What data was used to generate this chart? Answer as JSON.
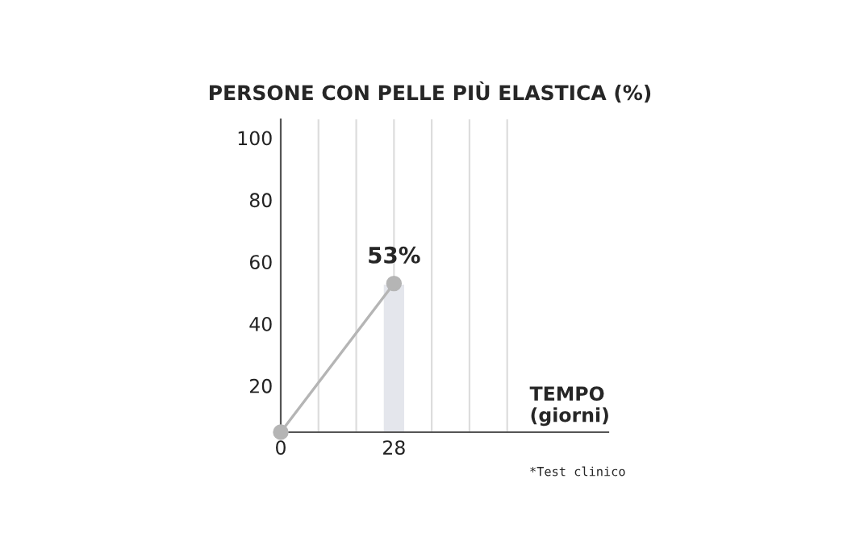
{
  "chart_data": {
    "type": "line",
    "title": "PERSONE CON PELLE PIÙ ELASTICA (%)",
    "xlabel": "TEMPO\n(giorni)",
    "series": [
      {
        "type": "bar",
        "color": "#e4e6ec",
        "values": [
          null,
          53
        ]
      },
      {
        "color": "#b5b5b5",
        "values": [
          5,
          53
        ],
        "marker": "circle",
        "value_labels": [
          null,
          "53%"
        ]
      }
    ],
    "x": [
      0,
      28
    ],
    "xlim": [
      0,
      81
    ],
    "xticks": [
      0,
      {
        "value": 9.33,
        "label": null
      },
      {
        "value": 18.67,
        "label": null
      },
      28,
      {
        "value": 37.33,
        "label": null
      },
      {
        "value": 46.67,
        "label": null
      },
      {
        "value": 56,
        "label": null
      }
    ],
    "ylim": [
      5,
      106
    ],
    "yticks": [
      20,
      40,
      60,
      80,
      100
    ],
    "grid": "x",
    "annotations": [
      "*Test clinico"
    ]
  }
}
